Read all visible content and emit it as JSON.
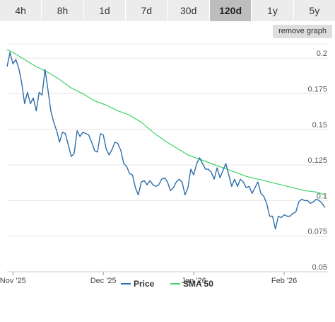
{
  "tabs": [
    {
      "label": "4h",
      "active": false
    },
    {
      "label": "8h",
      "active": false
    },
    {
      "label": "1d",
      "active": false
    },
    {
      "label": "7d",
      "active": false
    },
    {
      "label": "30d",
      "active": false
    },
    {
      "label": "120d",
      "active": true
    },
    {
      "label": "1y",
      "active": false
    },
    {
      "label": "5y",
      "active": false
    }
  ],
  "remove_graph_label": "remove graph",
  "colors": {
    "price": "#2f6ea8",
    "sma": "#3ed06a",
    "grid": "#e6e6e6"
  },
  "chart_data": {
    "type": "line",
    "ylim": [
      0.05,
      0.21
    ],
    "y_ticks": [
      "0.2",
      "0.175",
      "0.15",
      "0.125",
      "0.1",
      "0.075",
      "0.05"
    ],
    "x_ticks": [
      "Nov '25",
      "Dec '25",
      "Jan '26",
      "Feb '26"
    ],
    "x_range_days": [
      -2,
      108
    ],
    "x_tick_days": [
      0,
      31,
      62,
      93
    ],
    "series": [
      {
        "name": "Price",
        "color": "#2f6ea8",
        "x": [
          -2,
          -1,
          0,
          1,
          2,
          3,
          4,
          5,
          6,
          7,
          8,
          9,
          10,
          11,
          12,
          13,
          14,
          15,
          16,
          17,
          18,
          19,
          20,
          21,
          22,
          23,
          24,
          25,
          26,
          27,
          28,
          29,
          30,
          31,
          32,
          33,
          34,
          35,
          36,
          37,
          38,
          39,
          40,
          41,
          42,
          43,
          44,
          45,
          46,
          47,
          48,
          49,
          50,
          51,
          52,
          53,
          54,
          55,
          56,
          57,
          58,
          59,
          60,
          61,
          62,
          63,
          64,
          65,
          66,
          67,
          68,
          69,
          70,
          71,
          72,
          73,
          74,
          75,
          76,
          77,
          78,
          79,
          80,
          81,
          82,
          83,
          84,
          85,
          86,
          87,
          88,
          89,
          90,
          91,
          92,
          93,
          94,
          95,
          96,
          97,
          98,
          99,
          100,
          101,
          102,
          103,
          104,
          105,
          106,
          107
        ],
        "values": [
          0.194,
          0.204,
          0.196,
          0.199,
          0.193,
          0.183,
          0.168,
          0.176,
          0.168,
          0.172,
          0.163,
          0.176,
          0.174,
          0.192,
          0.178,
          0.163,
          0.155,
          0.149,
          0.141,
          0.148,
          0.147,
          0.139,
          0.131,
          0.133,
          0.149,
          0.145,
          0.148,
          0.147,
          0.146,
          0.141,
          0.135,
          0.134,
          0.147,
          0.146,
          0.136,
          0.132,
          0.136,
          0.141,
          0.14,
          0.135,
          0.126,
          0.124,
          0.119,
          0.118,
          0.109,
          0.104,
          0.113,
          0.114,
          0.111,
          0.114,
          0.111,
          0.11,
          0.111,
          0.115,
          0.116,
          0.113,
          0.107,
          0.109,
          0.113,
          0.115,
          0.113,
          0.104,
          0.109,
          0.122,
          0.118,
          0.126,
          0.13,
          0.126,
          0.122,
          0.122,
          0.12,
          0.115,
          0.123,
          0.116,
          0.121,
          0.126,
          0.118,
          0.11,
          0.115,
          0.11,
          0.115,
          0.113,
          0.109,
          0.11,
          0.105,
          0.109,
          0.113,
          0.105,
          0.103,
          0.098,
          0.089,
          0.089,
          0.08,
          0.089,
          0.088,
          0.09,
          0.089,
          0.089,
          0.091,
          0.092,
          0.099,
          0.101,
          0.1,
          0.1,
          0.098,
          0.099,
          0.101,
          0.1,
          0.098,
          0.095
        ]
      },
      {
        "name": "SMA 50",
        "color": "#3ed06a",
        "x": [
          -2,
          0,
          4,
          8,
          12,
          16,
          20,
          24,
          28,
          32,
          36,
          40,
          44,
          48,
          52,
          56,
          60,
          64,
          68,
          72,
          76,
          80,
          84,
          88,
          92,
          96,
          100,
          104,
          107
        ],
        "values": [
          0.206,
          0.204,
          0.199,
          0.194,
          0.19,
          0.185,
          0.179,
          0.175,
          0.17,
          0.167,
          0.163,
          0.16,
          0.155,
          0.148,
          0.142,
          0.137,
          0.132,
          0.129,
          0.126,
          0.123,
          0.12,
          0.117,
          0.115,
          0.113,
          0.111,
          0.109,
          0.107,
          0.106,
          0.104
        ]
      }
    ]
  }
}
